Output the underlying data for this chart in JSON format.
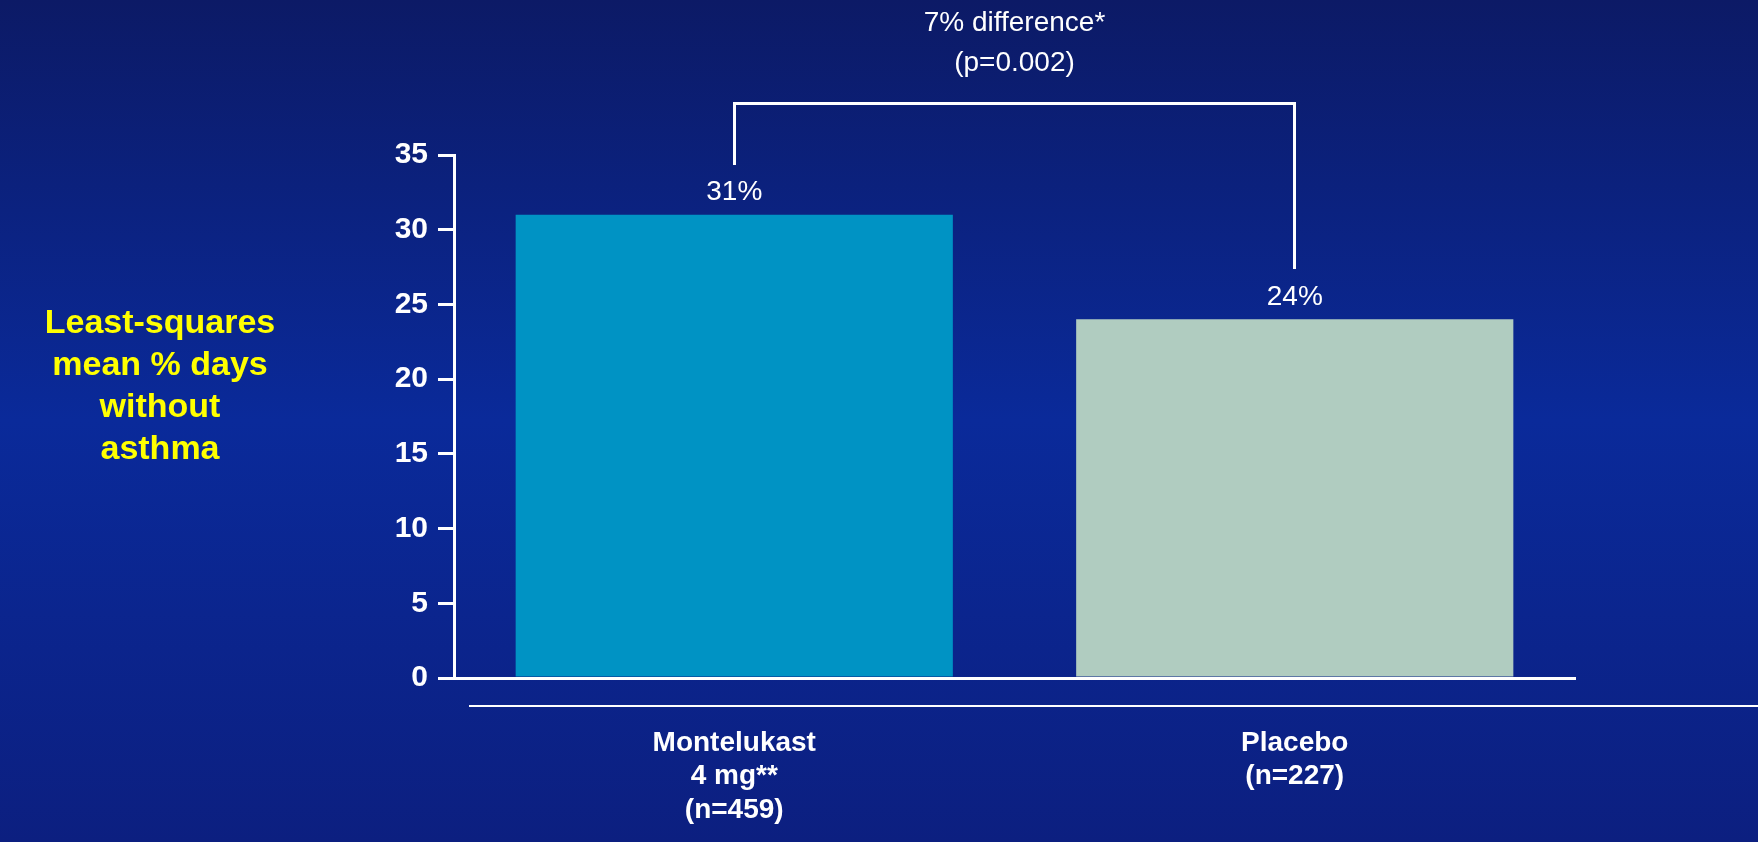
{
  "chart_data": {
    "type": "bar",
    "categories": [
      "Montelukast\n4 mg**\n(n=459)",
      "Placebo\n(n=227)"
    ],
    "values": [
      31,
      24
    ],
    "colors": [
      "#0093c4",
      "#b0ccc0"
    ],
    "ylabel": "Least-squares\nmean % days\nwithout\nasthma",
    "ylim": [
      0,
      35
    ],
    "yticks": [
      0,
      5,
      10,
      15,
      20,
      25,
      30,
      35
    ],
    "data_labels": true,
    "value_labels": [
      "31%",
      "24%"
    ],
    "annotations": [
      "7% difference*",
      "(p=0.002)"
    ],
    "grid": false,
    "legend": false
  }
}
